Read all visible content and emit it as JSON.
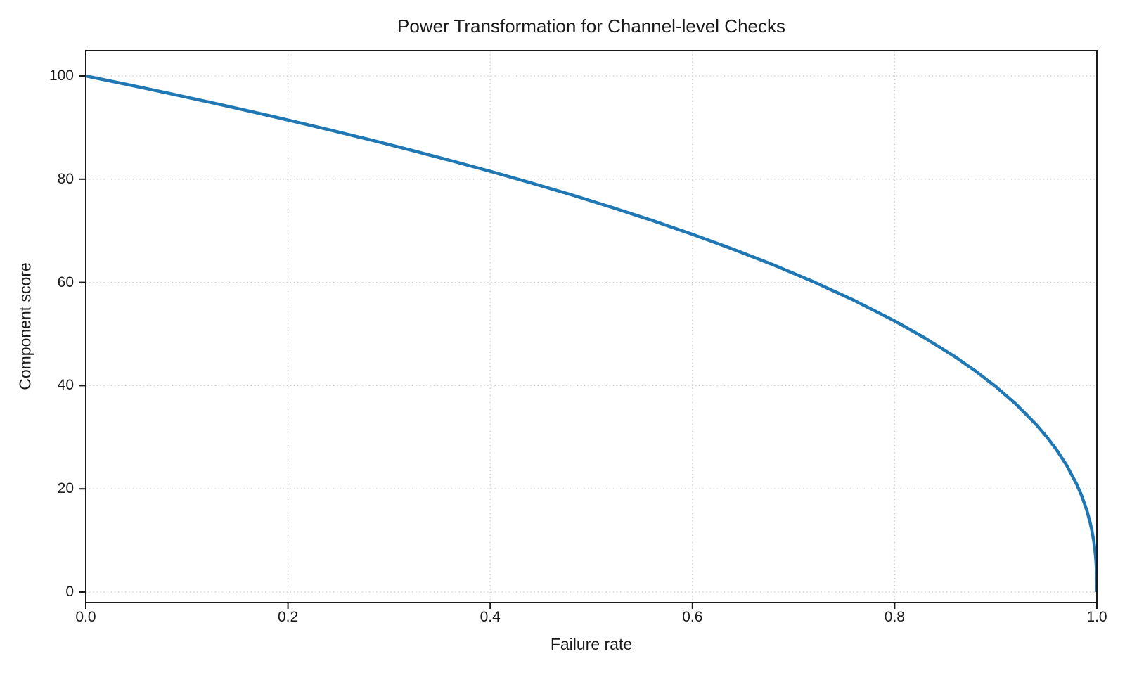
{
  "chart_data": {
    "type": "line",
    "title": "Power Transformation for Channel-level Checks",
    "xlabel": "Failure rate",
    "ylabel": "Component score",
    "xlim": [
      0.0,
      1.0
    ],
    "ylim": [
      0,
      100
    ],
    "x_ticks": [
      "0.0",
      "0.2",
      "0.4",
      "0.6",
      "0.8",
      "1.0"
    ],
    "y_ticks": [
      "0",
      "20",
      "40",
      "60",
      "80",
      "100"
    ],
    "grid": "dotted",
    "legend": "none",
    "function": "y = 100 * (1 - x)^0.4",
    "line_color": "#1f77b4",
    "line_width": 4.5,
    "grid_color": "#cccccc",
    "spine_color": "#1a1a1a",
    "text_color": "#1a1a1a",
    "series": [
      {
        "name": "Component score",
        "x": [
          0.0,
          0.02,
          0.04,
          0.06,
          0.08,
          0.1,
          0.12,
          0.14,
          0.16,
          0.18,
          0.2,
          0.24,
          0.28,
          0.32,
          0.36,
          0.4,
          0.44,
          0.48,
          0.52,
          0.56,
          0.6,
          0.64,
          0.68,
          0.72,
          0.76,
          0.8,
          0.83,
          0.86,
          0.88,
          0.9,
          0.92,
          0.94,
          0.95,
          0.96,
          0.97,
          0.98,
          0.985,
          0.99,
          0.993,
          0.995,
          0.997,
          0.998,
          0.999,
          0.9995,
          0.9999,
          1.0
        ],
        "y": [
          100.0,
          99.19,
          98.38,
          97.56,
          96.72,
          95.87,
          95.02,
          94.15,
          93.26,
          92.37,
          91.46,
          89.61,
          87.69,
          85.7,
          83.65,
          81.52,
          79.3,
          76.99,
          74.56,
          72.01,
          69.31,
          66.45,
          63.4,
          60.1,
          56.51,
          52.53,
          49.22,
          45.55,
          42.82,
          39.81,
          36.41,
          32.45,
          30.17,
          27.59,
          24.6,
          20.91,
          18.64,
          15.85,
          13.74,
          12.01,
          9.79,
          8.33,
          6.31,
          4.78,
          2.51,
          0.0
        ]
      }
    ]
  }
}
